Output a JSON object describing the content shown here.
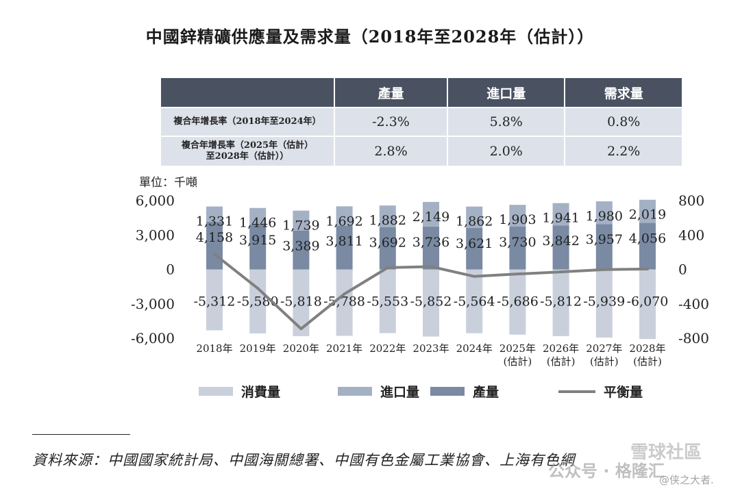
{
  "title": "中國鋅精礦供應量及需求量（2018年至2028年（估計））",
  "table": {
    "headers": [
      "產量",
      "進口量",
      "需求量"
    ],
    "rows": [
      {
        "label": "複合年增長率（2018年至2024年）",
        "label_l1": "複合年增長率（2018年至2024年）",
        "label_l2": "",
        "values": [
          "-2.3%",
          "5.8%",
          "0.8%"
        ]
      },
      {
        "label": "複合年增長率（2025年（估計）至2028年（估計））",
        "label_l1": "複合年增長率（2025年（估計）",
        "label_l2": "至2028年（估計））",
        "values": [
          "2.8%",
          "2.0%",
          "2.2%"
        ]
      }
    ]
  },
  "unit_label": "單位：千噸",
  "chart_data": {
    "type": "bar",
    "stacked": true,
    "categories": [
      "2018年",
      "2019年",
      "2020年",
      "2021年",
      "2022年",
      "2023年",
      "2024年",
      "2025年\n(估計)",
      "2026年\n(估計)",
      "2027年\n(估計)",
      "2028年\n(估計)"
    ],
    "series": [
      {
        "name": "消費量",
        "axis": "left",
        "color": "#c9d0dc",
        "values": [
          -5312,
          -5580,
          -5818,
          -5788,
          -5553,
          -5852,
          -5564,
          -5686,
          -5812,
          -5939,
          -6070
        ],
        "labels": [
          "-5,312",
          "-5,580",
          "-5,818",
          "-5,788",
          "-5,553",
          "-5,852",
          "-5,564",
          "-5,686",
          "-5,812",
          "-5,939",
          "-6,070"
        ]
      },
      {
        "name": "產量",
        "axis": "left",
        "color": "#7a8aa3",
        "values": [
          4158,
          3915,
          3389,
          3811,
          3692,
          3736,
          3621,
          3730,
          3842,
          3957,
          4056
        ],
        "labels": [
          "4,158",
          "3,915",
          "3,389",
          "3,811",
          "3,692",
          "3,736",
          "3,621",
          "3,730",
          "3,842",
          "3,957",
          "4,056"
        ]
      },
      {
        "name": "進口量",
        "axis": "left",
        "color": "#a4b1c4",
        "values": [
          1331,
          1446,
          1739,
          1692,
          1882,
          2149,
          1862,
          1903,
          1941,
          1980,
          2019
        ],
        "labels": [
          "1,331",
          "1,446",
          "1,739",
          "1,692",
          "1,882",
          "2,149",
          "1,862",
          "1,903",
          "1,941",
          "1,980",
          "2,019"
        ]
      },
      {
        "name": "平衡量",
        "axis": "right",
        "type": "line",
        "color": "#808080",
        "values": [
          177,
          -219,
          -690,
          -285,
          21,
          33,
          -81,
          -53,
          -29,
          -2,
          5
        ]
      }
    ],
    "ylim_left": [
      -6000,
      6000
    ],
    "yticks_left": [
      "6,000",
      "3,000",
      "0",
      "-3,000",
      "-6,000"
    ],
    "ylim_right": [
      -800,
      800
    ],
    "yticks_right": [
      "800",
      "400",
      "0",
      "-400",
      "-800"
    ]
  },
  "legend": [
    {
      "label": "消費量",
      "color": "#c9d0dc",
      "kind": "box"
    },
    {
      "label": "進口量",
      "color": "#a4b1c4",
      "kind": "box"
    },
    {
      "label": "產量",
      "color": "#7a8aa3",
      "kind": "box"
    },
    {
      "label": "平衡量",
      "color": "#808080",
      "kind": "line"
    }
  ],
  "source": "資料來源：中國國家統計局、中國海關總署、中國有色金屬工業協會、上海有色網",
  "watermark": {
    "line1": "雪球社區",
    "line2": "公众号 · 格隆汇",
    "line3": "@侠之大者."
  }
}
